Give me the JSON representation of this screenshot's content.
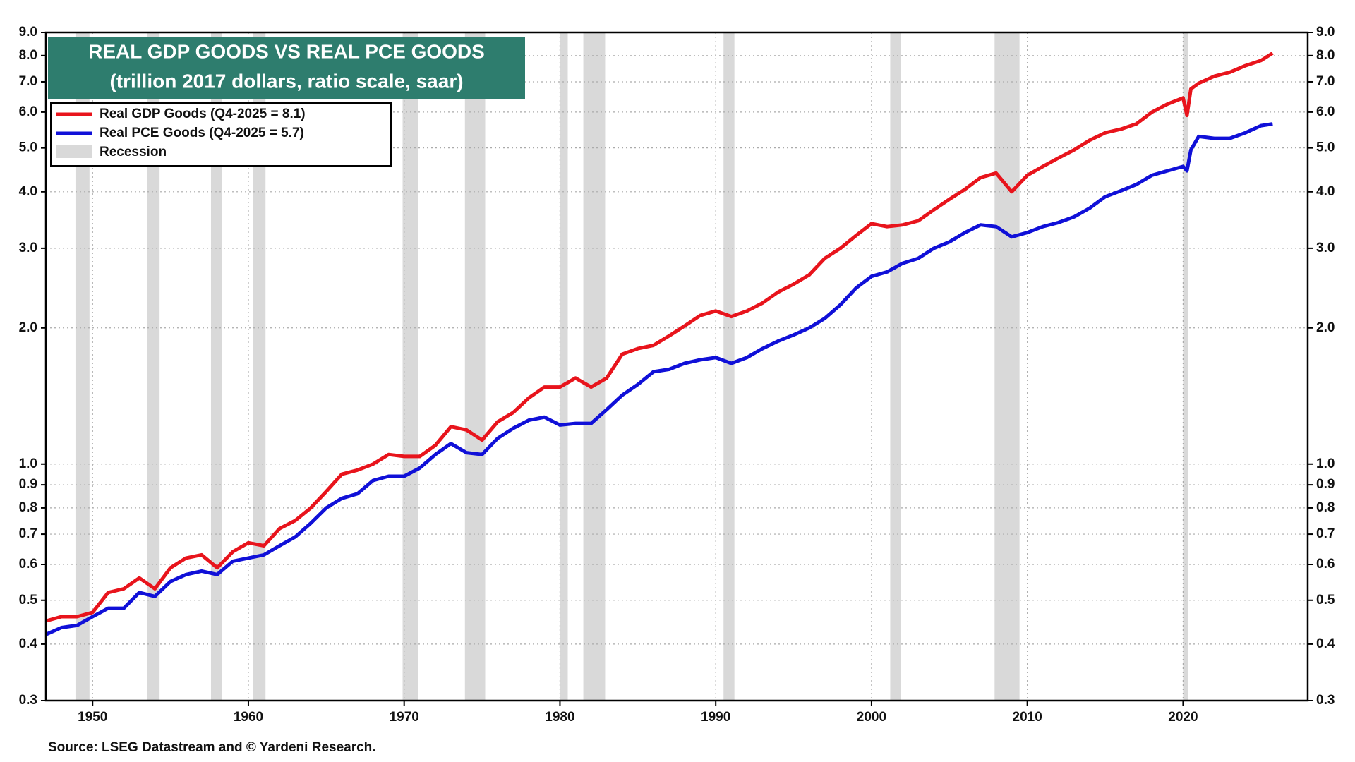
{
  "chart_data": {
    "type": "line",
    "title": "REAL GDP GOODS VS REAL PCE GOODS",
    "subtitle": "(trillion 2017 dollars, ratio scale, saar)",
    "source": "Source: LSEG Datastream and © Yardeni Research.",
    "recession_label": "Recession",
    "recession_color": "#d9d9d9",
    "log_scale": true,
    "grid": true,
    "legend": "upper left",
    "xlim": [
      1947,
      2028
    ],
    "xticks": [
      1950,
      1960,
      1970,
      1980,
      1990,
      2000,
      2010,
      2020
    ],
    "ylim": [
      0.3,
      9
    ],
    "yticks": [
      0.3,
      0.4,
      0.5,
      0.6,
      0.7,
      0.8,
      0.9,
      {
        "value": 1,
        "label": "1.0"
      },
      {
        "value": 2,
        "label": "2.0"
      },
      {
        "value": 3,
        "label": "3.0"
      },
      {
        "value": 4,
        "label": "4.0"
      },
      {
        "value": 5,
        "label": "5.0"
      },
      {
        "value": 6,
        "label": "6.0"
      },
      {
        "value": 7,
        "label": "7.0"
      },
      {
        "value": 8,
        "label": "8.0"
      },
      {
        "value": 9,
        "label": "9.0"
      }
    ],
    "recessions": [
      [
        1948.9,
        1949.8
      ],
      [
        1953.5,
        1954.3
      ],
      [
        1957.6,
        1958.3
      ],
      [
        1960.3,
        1961.1
      ],
      [
        1969.9,
        1970.9
      ],
      [
        1973.9,
        1975.2
      ],
      [
        1980.0,
        1980.5
      ],
      [
        1981.5,
        1982.9
      ],
      [
        1990.5,
        1991.2
      ],
      [
        2001.2,
        2001.9
      ],
      [
        2007.9,
        2009.5
      ],
      [
        2020.0,
        2020.3
      ]
    ],
    "x": [
      1947,
      1948,
      1949,
      1950,
      1951,
      1952,
      1953,
      1954,
      1955,
      1956,
      1957,
      1958,
      1959,
      1960,
      1961,
      1962,
      1963,
      1964,
      1965,
      1966,
      1967,
      1968,
      1969,
      1970,
      1971,
      1972,
      1973,
      1974,
      1975,
      1976,
      1977,
      1978,
      1979,
      1980,
      1981,
      1982,
      1983,
      1984,
      1985,
      1986,
      1987,
      1988,
      1989,
      1990,
      1991,
      1992,
      1993,
      1994,
      1995,
      1996,
      1997,
      1998,
      1999,
      2000,
      2001,
      2002,
      2003,
      2004,
      2005,
      2006,
      2007,
      2008,
      2009,
      2010,
      2011,
      2012,
      2013,
      2014,
      2015,
      2016,
      2017,
      2018,
      2019,
      2020,
      2020.25,
      2020.5,
      2021,
      2022,
      2023,
      2024,
      2025,
      2025.75
    ],
    "series": [
      {
        "name": "Real GDP Goods (Q4-2025 = 8.1)",
        "color": "#e8141c",
        "values": [
          0.45,
          0.46,
          0.46,
          0.47,
          0.52,
          0.53,
          0.56,
          0.53,
          0.59,
          0.62,
          0.63,
          0.59,
          0.64,
          0.67,
          0.66,
          0.72,
          0.75,
          0.8,
          0.87,
          0.95,
          0.97,
          1.0,
          1.05,
          1.04,
          1.04,
          1.1,
          1.21,
          1.19,
          1.13,
          1.24,
          1.3,
          1.4,
          1.48,
          1.48,
          1.55,
          1.48,
          1.55,
          1.75,
          1.8,
          1.83,
          1.92,
          2.02,
          2.13,
          2.18,
          2.12,
          2.18,
          2.27,
          2.4,
          2.5,
          2.62,
          2.85,
          3.0,
          3.2,
          3.4,
          3.35,
          3.38,
          3.45,
          3.65,
          3.85,
          4.05,
          4.3,
          4.4,
          4.0,
          4.35,
          4.55,
          4.75,
          4.95,
          5.2,
          5.4,
          5.5,
          5.65,
          6.0,
          6.25,
          6.45,
          5.9,
          6.75,
          6.95,
          7.2,
          7.35,
          7.6,
          7.8,
          8.1
        ]
      },
      {
        "name": "Real PCE Goods (Q4-2025 = 5.7)",
        "color": "#1010d8",
        "values": [
          0.42,
          0.435,
          0.44,
          0.46,
          0.48,
          0.48,
          0.52,
          0.51,
          0.55,
          0.57,
          0.58,
          0.57,
          0.61,
          0.62,
          0.63,
          0.66,
          0.69,
          0.74,
          0.8,
          0.84,
          0.86,
          0.92,
          0.94,
          0.94,
          0.98,
          1.05,
          1.11,
          1.06,
          1.05,
          1.14,
          1.2,
          1.25,
          1.27,
          1.22,
          1.23,
          1.23,
          1.32,
          1.42,
          1.5,
          1.6,
          1.62,
          1.67,
          1.7,
          1.72,
          1.67,
          1.72,
          1.8,
          1.87,
          1.93,
          2.0,
          2.1,
          2.25,
          2.45,
          2.6,
          2.66,
          2.78,
          2.85,
          3.0,
          3.1,
          3.25,
          3.38,
          3.35,
          3.18,
          3.25,
          3.35,
          3.42,
          3.52,
          3.68,
          3.9,
          4.02,
          4.15,
          4.35,
          4.45,
          4.55,
          4.45,
          4.95,
          5.3,
          5.25,
          5.25,
          5.4,
          5.6,
          5.65
        ]
      }
    ]
  }
}
